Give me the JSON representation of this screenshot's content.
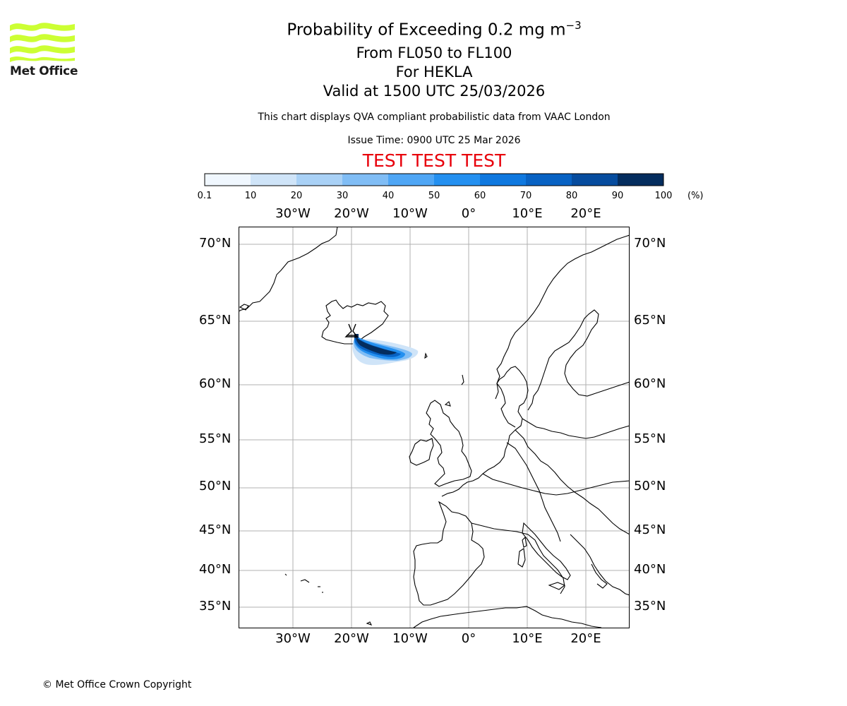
{
  "logo": {
    "text": "Met Office",
    "color": "#ccff33"
  },
  "title": {
    "line1": "Probability of Exceeding 0.2 mg m",
    "line1_sup": "−3",
    "line2": "From FL050 to FL100",
    "line3": "For HEKLA",
    "line4": "Valid at 1500 UTC 25/03/2026"
  },
  "disclaimer": "This chart displays QVA compliant probabilistic data from VAAC London",
  "issue_time": "Issue Time: 0900 UTC 25 Mar 2026",
  "test_banner": {
    "text": "TEST TEST TEST",
    "color": "#e8000b"
  },
  "colorbar": {
    "ticks": [
      "0.1",
      "10",
      "20",
      "30",
      "40",
      "50",
      "60",
      "70",
      "80",
      "90",
      "100"
    ],
    "unit": "(%)",
    "colors": [
      "#f0f7fe",
      "#cfe4f8",
      "#a9d1f6",
      "#80bdf5",
      "#4fa6f5",
      "#2490f0",
      "#0f78df",
      "#0862c3",
      "#064c9e",
      "#042d5e"
    ]
  },
  "map": {
    "lon_labels": [
      "30°W",
      "20°W",
      "10°W",
      "0°",
      "10°E",
      "20°E"
    ],
    "lat_labels": [
      "70°N",
      "65°N",
      "60°N",
      "55°N",
      "50°N",
      "45°N",
      "40°N",
      "35°N"
    ],
    "volcano_name": "HEKLA"
  },
  "copyright": "© Met Office Crown Copyright"
}
